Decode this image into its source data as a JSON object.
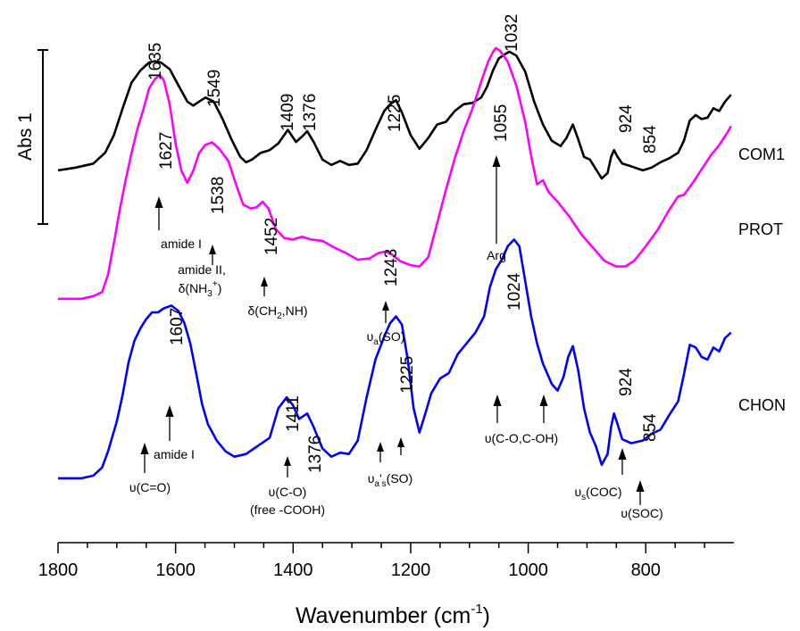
{
  "chart_data": {
    "type": "line",
    "xlabel": "Wavenumber (cm",
    "xlabel_sup": "-1",
    "xlabel_close": ")",
    "x_reversed": true,
    "xlim": [
      1800,
      650
    ],
    "x_ticks": [
      1800,
      1600,
      1400,
      1200,
      1000,
      800
    ],
    "scale_bar_label": "Abs 1",
    "grid": false,
    "series": [
      {
        "name": "COM1",
        "color": "#000000",
        "peaks": [
          "1635",
          "1549",
          "1409",
          "1376",
          "1225",
          "1032",
          "924",
          "854"
        ],
        "points": [
          [
            1800,
            0.12
          ],
          [
            1770,
            0.14
          ],
          [
            1740,
            0.17
          ],
          [
            1720,
            0.25
          ],
          [
            1705,
            0.38
          ],
          [
            1690,
            0.58
          ],
          [
            1675,
            0.77
          ],
          [
            1660,
            0.86
          ],
          [
            1645,
            0.92
          ],
          [
            1635,
            0.93
          ],
          [
            1625,
            0.92
          ],
          [
            1610,
            0.87
          ],
          [
            1595,
            0.75
          ],
          [
            1580,
            0.63
          ],
          [
            1570,
            0.6
          ],
          [
            1560,
            0.63
          ],
          [
            1549,
            0.66
          ],
          [
            1535,
            0.63
          ],
          [
            1520,
            0.5
          ],
          [
            1505,
            0.35
          ],
          [
            1490,
            0.22
          ],
          [
            1480,
            0.18
          ],
          [
            1470,
            0.2
          ],
          [
            1455,
            0.25
          ],
          [
            1440,
            0.27
          ],
          [
            1425,
            0.32
          ],
          [
            1409,
            0.42
          ],
          [
            1395,
            0.33
          ],
          [
            1385,
            0.37
          ],
          [
            1376,
            0.41
          ],
          [
            1365,
            0.33
          ],
          [
            1350,
            0.2
          ],
          [
            1335,
            0.16
          ],
          [
            1320,
            0.19
          ],
          [
            1305,
            0.16
          ],
          [
            1290,
            0.17
          ],
          [
            1275,
            0.27
          ],
          [
            1260,
            0.42
          ],
          [
            1245,
            0.56
          ],
          [
            1235,
            0.61
          ],
          [
            1225,
            0.64
          ],
          [
            1215,
            0.55
          ],
          [
            1200,
            0.38
          ],
          [
            1185,
            0.28
          ],
          [
            1170,
            0.36
          ],
          [
            1155,
            0.46
          ],
          [
            1140,
            0.48
          ],
          [
            1125,
            0.56
          ],
          [
            1110,
            0.61
          ],
          [
            1095,
            0.62
          ],
          [
            1080,
            0.66
          ],
          [
            1070,
            0.74
          ],
          [
            1060,
            0.86
          ],
          [
            1050,
            0.95
          ],
          [
            1040,
            0.98
          ],
          [
            1032,
            1.0
          ],
          [
            1020,
            0.97
          ],
          [
            1005,
            0.85
          ],
          [
            990,
            0.63
          ],
          [
            975,
            0.46
          ],
          [
            960,
            0.34
          ],
          [
            945,
            0.3
          ],
          [
            935,
            0.36
          ],
          [
            924,
            0.46
          ],
          [
            915,
            0.35
          ],
          [
            905,
            0.22
          ],
          [
            895,
            0.2
          ],
          [
            885,
            0.13
          ],
          [
            875,
            0.06
          ],
          [
            865,
            0.1
          ],
          [
            859,
            0.22
          ],
          [
            854,
            0.27
          ],
          [
            848,
            0.22
          ],
          [
            840,
            0.17
          ],
          [
            825,
            0.15
          ],
          [
            805,
            0.12
          ],
          [
            790,
            0.14
          ],
          [
            775,
            0.18
          ],
          [
            760,
            0.21
          ],
          [
            745,
            0.25
          ],
          [
            735,
            0.34
          ],
          [
            725,
            0.49
          ],
          [
            715,
            0.53
          ],
          [
            705,
            0.5
          ],
          [
            695,
            0.51
          ],
          [
            685,
            0.58
          ],
          [
            675,
            0.56
          ],
          [
            665,
            0.63
          ],
          [
            655,
            0.68
          ]
        ]
      },
      {
        "name": "PROT",
        "color": "#ff00ff",
        "peaks": [
          "1627",
          "1538",
          "1452",
          "1243",
          "1055"
        ],
        "points": [
          [
            1800,
            0.14
          ],
          [
            1760,
            0.14
          ],
          [
            1740,
            0.16
          ],
          [
            1725,
            0.19
          ],
          [
            1715,
            0.32
          ],
          [
            1705,
            0.55
          ],
          [
            1695,
            0.8
          ],
          [
            1685,
            1.02
          ],
          [
            1675,
            1.22
          ],
          [
            1665,
            1.4
          ],
          [
            1655,
            1.54
          ],
          [
            1645,
            1.7
          ],
          [
            1635,
            1.77
          ],
          [
            1627,
            1.8
          ],
          [
            1620,
            1.76
          ],
          [
            1610,
            1.58
          ],
          [
            1600,
            1.29
          ],
          [
            1590,
            1.09
          ],
          [
            1580,
            1.0
          ],
          [
            1570,
            1.09
          ],
          [
            1560,
            1.22
          ],
          [
            1550,
            1.28
          ],
          [
            1538,
            1.3
          ],
          [
            1525,
            1.25
          ],
          [
            1510,
            1.16
          ],
          [
            1495,
            0.96
          ],
          [
            1485,
            0.84
          ],
          [
            1472,
            0.81
          ],
          [
            1462,
            0.82
          ],
          [
            1452,
            0.86
          ],
          [
            1442,
            0.81
          ],
          [
            1430,
            0.66
          ],
          [
            1415,
            0.59
          ],
          [
            1400,
            0.58
          ],
          [
            1385,
            0.6
          ],
          [
            1370,
            0.58
          ],
          [
            1350,
            0.57
          ],
          [
            1330,
            0.52
          ],
          [
            1310,
            0.48
          ],
          [
            1290,
            0.43
          ],
          [
            1270,
            0.44
          ],
          [
            1255,
            0.48
          ],
          [
            1243,
            0.49
          ],
          [
            1232,
            0.47
          ],
          [
            1218,
            0.42
          ],
          [
            1200,
            0.39
          ],
          [
            1185,
            0.38
          ],
          [
            1170,
            0.45
          ],
          [
            1155,
            0.7
          ],
          [
            1140,
            0.95
          ],
          [
            1125,
            1.18
          ],
          [
            1110,
            1.38
          ],
          [
            1095,
            1.55
          ],
          [
            1080,
            1.75
          ],
          [
            1068,
            1.9
          ],
          [
            1060,
            1.97
          ],
          [
            1055,
            2.0
          ],
          [
            1048,
            1.98
          ],
          [
            1035,
            1.9
          ],
          [
            1020,
            1.72
          ],
          [
            1005,
            1.45
          ],
          [
            995,
            1.2
          ],
          [
            985,
            0.99
          ],
          [
            975,
            1.02
          ],
          [
            965,
            0.93
          ],
          [
            950,
            0.86
          ],
          [
            930,
            0.75
          ],
          [
            910,
            0.62
          ],
          [
            890,
            0.52
          ],
          [
            870,
            0.42
          ],
          [
            850,
            0.38
          ],
          [
            835,
            0.38
          ],
          [
            820,
            0.42
          ],
          [
            800,
            0.53
          ],
          [
            780,
            0.65
          ],
          [
            760,
            0.8
          ],
          [
            745,
            0.9
          ],
          [
            735,
            0.91
          ],
          [
            720,
            1.0
          ],
          [
            705,
            1.1
          ],
          [
            690,
            1.2
          ],
          [
            675,
            1.28
          ],
          [
            660,
            1.38
          ],
          [
            655,
            1.42
          ]
        ]
      },
      {
        "name": "CHON",
        "color": "#0000ff",
        "peaks": [
          "1607",
          "1411",
          "1376",
          "1225",
          "1024",
          "924",
          "854"
        ],
        "points": [
          [
            1800,
            0.1
          ],
          [
            1760,
            0.1
          ],
          [
            1740,
            0.12
          ],
          [
            1725,
            0.18
          ],
          [
            1715,
            0.3
          ],
          [
            1700,
            0.52
          ],
          [
            1690,
            0.72
          ],
          [
            1680,
            0.96
          ],
          [
            1670,
            1.12
          ],
          [
            1660,
            1.21
          ],
          [
            1650,
            1.28
          ],
          [
            1640,
            1.33
          ],
          [
            1630,
            1.33
          ],
          [
            1620,
            1.36
          ],
          [
            1607,
            1.38
          ],
          [
            1595,
            1.34
          ],
          [
            1585,
            1.25
          ],
          [
            1575,
            1.1
          ],
          [
            1565,
            0.88
          ],
          [
            1555,
            0.65
          ],
          [
            1545,
            0.5
          ],
          [
            1530,
            0.38
          ],
          [
            1515,
            0.3
          ],
          [
            1500,
            0.26
          ],
          [
            1480,
            0.28
          ],
          [
            1460,
            0.34
          ],
          [
            1440,
            0.4
          ],
          [
            1425,
            0.62
          ],
          [
            1411,
            0.7
          ],
          [
            1400,
            0.64
          ],
          [
            1390,
            0.54
          ],
          [
            1376,
            0.58
          ],
          [
            1365,
            0.48
          ],
          [
            1350,
            0.32
          ],
          [
            1335,
            0.26
          ],
          [
            1320,
            0.29
          ],
          [
            1305,
            0.28
          ],
          [
            1290,
            0.38
          ],
          [
            1275,
            0.7
          ],
          [
            1260,
            0.98
          ],
          [
            1245,
            1.15
          ],
          [
            1235,
            1.25
          ],
          [
            1225,
            1.3
          ],
          [
            1215,
            1.24
          ],
          [
            1205,
            0.98
          ],
          [
            1195,
            0.62
          ],
          [
            1185,
            0.44
          ],
          [
            1175,
            0.58
          ],
          [
            1165,
            0.73
          ],
          [
            1150,
            0.84
          ],
          [
            1135,
            0.88
          ],
          [
            1120,
            1.02
          ],
          [
            1105,
            1.1
          ],
          [
            1090,
            1.18
          ],
          [
            1075,
            1.3
          ],
          [
            1065,
            1.52
          ],
          [
            1055,
            1.65
          ],
          [
            1045,
            1.72
          ],
          [
            1035,
            1.82
          ],
          [
            1024,
            1.87
          ],
          [
            1015,
            1.82
          ],
          [
            1005,
            1.56
          ],
          [
            995,
            1.3
          ],
          [
            985,
            1.1
          ],
          [
            975,
            0.95
          ],
          [
            960,
            0.8
          ],
          [
            950,
            0.75
          ],
          [
            940,
            0.85
          ],
          [
            932,
            1.0
          ],
          [
            924,
            1.08
          ],
          [
            915,
            0.9
          ],
          [
            905,
            0.62
          ],
          [
            895,
            0.44
          ],
          [
            885,
            0.34
          ],
          [
            875,
            0.2
          ],
          [
            865,
            0.28
          ],
          [
            859,
            0.48
          ],
          [
            854,
            0.58
          ],
          [
            848,
            0.5
          ],
          [
            840,
            0.39
          ],
          [
            825,
            0.36
          ],
          [
            805,
            0.38
          ],
          [
            790,
            0.43
          ],
          [
            775,
            0.46
          ],
          [
            760,
            0.57
          ],
          [
            745,
            0.67
          ],
          [
            735,
            0.87
          ],
          [
            725,
            1.09
          ],
          [
            715,
            1.07
          ],
          [
            705,
            1.0
          ],
          [
            695,
            0.98
          ],
          [
            685,
            1.07
          ],
          [
            675,
            1.04
          ],
          [
            665,
            1.14
          ],
          [
            655,
            1.18
          ]
        ]
      }
    ],
    "annotations": {
      "amide_I_prot": "amide I",
      "amide_II_line1": "amide II,",
      "amide_II_delta": "δ(NH",
      "amide_II_sub": "3",
      "amide_II_sup": "+",
      "amide_II_close": ")",
      "delta_ch2": "δ(CH",
      "delta_ch2_sub": "2",
      "delta_ch2_rest": ",NH)",
      "nu_a_so_base": "υ",
      "nu_a_so_sub": "a",
      "nu_a_so_rest": "(SO)",
      "arg": "Arg",
      "nu_co": "υ(C=O)",
      "amide_I_chon": "amide I",
      "nu_c_o": "υ(C-O)",
      "free_cooh": "(free -COOH)",
      "nu_as_so_base": "υ",
      "nu_as_so_sub": "a",
      "nu_as_so_mid": "'",
      "nu_as_so_sub2": "s",
      "nu_as_so_rest": "(SO)",
      "nu_co_coh": "υ(C-O,C-OH)",
      "nu_s_coc_base": "υ",
      "nu_s_coc_sub": "s",
      "nu_s_coc_rest": "(COC)",
      "nu_soc": "υ(SOC)"
    }
  }
}
